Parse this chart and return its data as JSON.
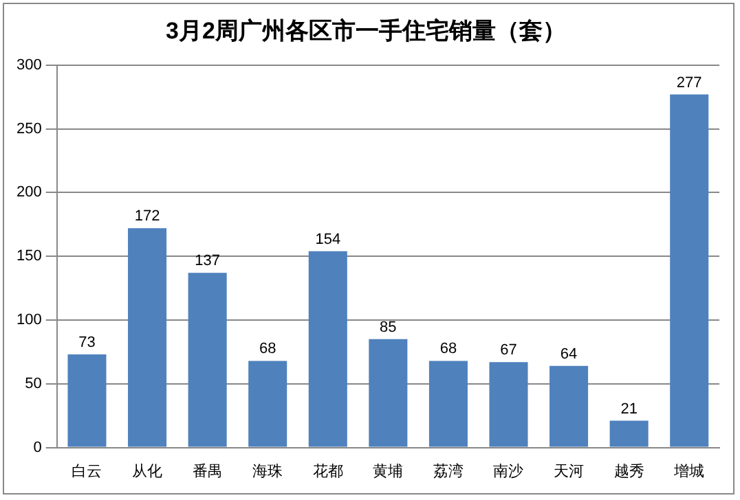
{
  "chart_data": {
    "type": "bar",
    "title": "3月2周广州各区市一手住宅销量（套）",
    "categories": [
      "白云",
      "从化",
      "番禺",
      "海珠",
      "花都",
      "黄埔",
      "荔湾",
      "南沙",
      "天河",
      "越秀",
      "增城"
    ],
    "values": [
      73,
      172,
      137,
      68,
      154,
      85,
      68,
      67,
      64,
      21,
      277
    ],
    "color": "#4f81bd",
    "ylim": [
      0,
      300
    ],
    "yticks": [
      0,
      50,
      100,
      150,
      200,
      250,
      300
    ],
    "grid": "y",
    "data_labels": true
  }
}
